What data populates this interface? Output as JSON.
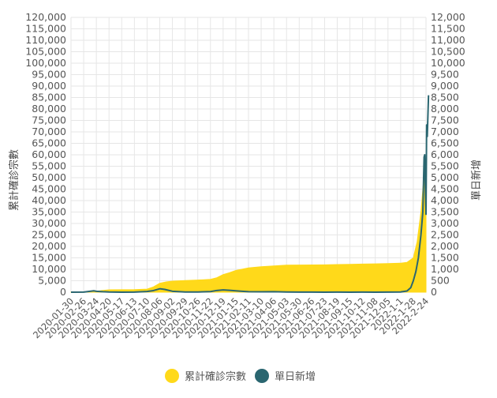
{
  "chart_data": {
    "type": "area-line-dual-axis",
    "title": "",
    "xlabel": "",
    "ylabel_left": "累計確診宗數",
    "ylabel_right": "單日新增",
    "ylim_left": [
      0,
      120000
    ],
    "ylim_right": [
      0,
      12000
    ],
    "y_ticks_left": [
      "0",
      "5,000",
      "10,000",
      "15,000",
      "20,000",
      "25,000",
      "30,000",
      "35,000",
      "40,000",
      "45,000",
      "50,000",
      "55,000",
      "60,000",
      "65,000",
      "70,000",
      "75,000",
      "80,000",
      "85,000",
      "90,000",
      "95,000",
      "100,000",
      "105,000",
      "110,000",
      "115,000",
      "120,000"
    ],
    "y_ticks_right": [
      "0",
      "500",
      "1,000",
      "1,500",
      "2,000",
      "2,500",
      "3,000",
      "3,500",
      "4,000",
      "4,500",
      "5,000",
      "5,500",
      "6,000",
      "6,500",
      "7,000",
      "7,500",
      "8,000",
      "8,500",
      "9,000",
      "9,500",
      "10,000",
      "10,500",
      "11,000",
      "11,500",
      "12,000"
    ],
    "x_tick_labels": [
      "2020-01-30",
      "2020-02-26",
      "2020-03-24",
      "2020-04-20",
      "2020-05-17",
      "2020-06-13",
      "2020-07-10",
      "2020-08-06",
      "2020-09-02",
      "2020-09-29",
      "2020-10-26",
      "2020-11-22",
      "2020-12-19",
      "2021-01-15",
      "2021-02-11",
      "2021-03-10",
      "2021-04-06",
      "2021-05-03",
      "2021-05-30",
      "2021-06-26",
      "2021-07-23",
      "2021-08-19",
      "2021-09-15",
      "2021-10-12",
      "2021-11-08",
      "2021-12-05",
      "2022-1-1",
      "2022-1-28",
      "2022-2-24"
    ],
    "legend_position": "bottom",
    "grid": true,
    "series": [
      {
        "name": "累計確診宗數",
        "kind": "area",
        "axis": "left",
        "color": "#FFD91A",
        "points": [
          [
            0,
            10
          ],
          [
            1,
            100
          ],
          [
            2,
            450
          ],
          [
            3,
            1030
          ],
          [
            4,
            1065
          ],
          [
            5,
            1110
          ],
          [
            6,
            1350
          ],
          [
            6.5,
            2300
          ],
          [
            7,
            3900
          ],
          [
            7.5,
            4500
          ],
          [
            8,
            4850
          ],
          [
            9,
            5100
          ],
          [
            10,
            5300
          ],
          [
            10.5,
            5450
          ],
          [
            11,
            5600
          ],
          [
            11.5,
            6300
          ],
          [
            12,
            7700
          ],
          [
            12.5,
            8500
          ],
          [
            13,
            9500
          ],
          [
            14,
            10600
          ],
          [
            15,
            11100
          ],
          [
            16,
            11450
          ],
          [
            17,
            11800
          ],
          [
            18,
            11850
          ],
          [
            19,
            11900
          ],
          [
            20,
            11950
          ],
          [
            21,
            12050
          ],
          [
            22,
            12150
          ],
          [
            23,
            12280
          ],
          [
            24,
            12380
          ],
          [
            25,
            12480
          ],
          [
            26,
            12650
          ],
          [
            26.5,
            13000
          ],
          [
            27,
            15000
          ],
          [
            27.3,
            22000
          ],
          [
            27.6,
            35000
          ],
          [
            27.8,
            48000
          ],
          [
            28,
            56000
          ]
        ]
      },
      {
        "name": "單日新增",
        "kind": "line",
        "axis": "right",
        "color": "#2A6670",
        "points": [
          [
            0,
            0
          ],
          [
            1,
            5
          ],
          [
            1.8,
            60
          ],
          [
            2,
            40
          ],
          [
            2.5,
            20
          ],
          [
            3,
            8
          ],
          [
            4,
            2
          ],
          [
            5,
            3
          ],
          [
            6,
            30
          ],
          [
            6.5,
            70
          ],
          [
            7,
            150
          ],
          [
            7.4,
            120
          ],
          [
            8,
            40
          ],
          [
            9,
            10
          ],
          [
            10,
            8
          ],
          [
            11,
            25
          ],
          [
            11.5,
            75
          ],
          [
            12,
            100
          ],
          [
            12.5,
            80
          ],
          [
            13,
            60
          ],
          [
            13.5,
            40
          ],
          [
            14,
            20
          ],
          [
            15,
            15
          ],
          [
            16,
            20
          ],
          [
            17,
            10
          ],
          [
            18,
            5
          ],
          [
            19,
            3
          ],
          [
            20,
            2
          ],
          [
            21,
            3
          ],
          [
            22,
            2
          ],
          [
            23,
            3
          ],
          [
            24,
            2
          ],
          [
            25,
            4
          ],
          [
            26,
            10
          ],
          [
            26.5,
            50
          ],
          [
            26.8,
            200
          ],
          [
            27,
            500
          ],
          [
            27.2,
            900
          ],
          [
            27.4,
            1500
          ],
          [
            27.6,
            2500
          ],
          [
            27.75,
            3500
          ],
          [
            27.85,
            5900
          ],
          [
            27.9,
            6000
          ],
          [
            27.95,
            4500
          ],
          [
            28,
            3400
          ],
          [
            28.05,
            7300
          ],
          [
            28.1,
            6800
          ],
          [
            28.2,
            8600
          ]
        ]
      }
    ]
  }
}
